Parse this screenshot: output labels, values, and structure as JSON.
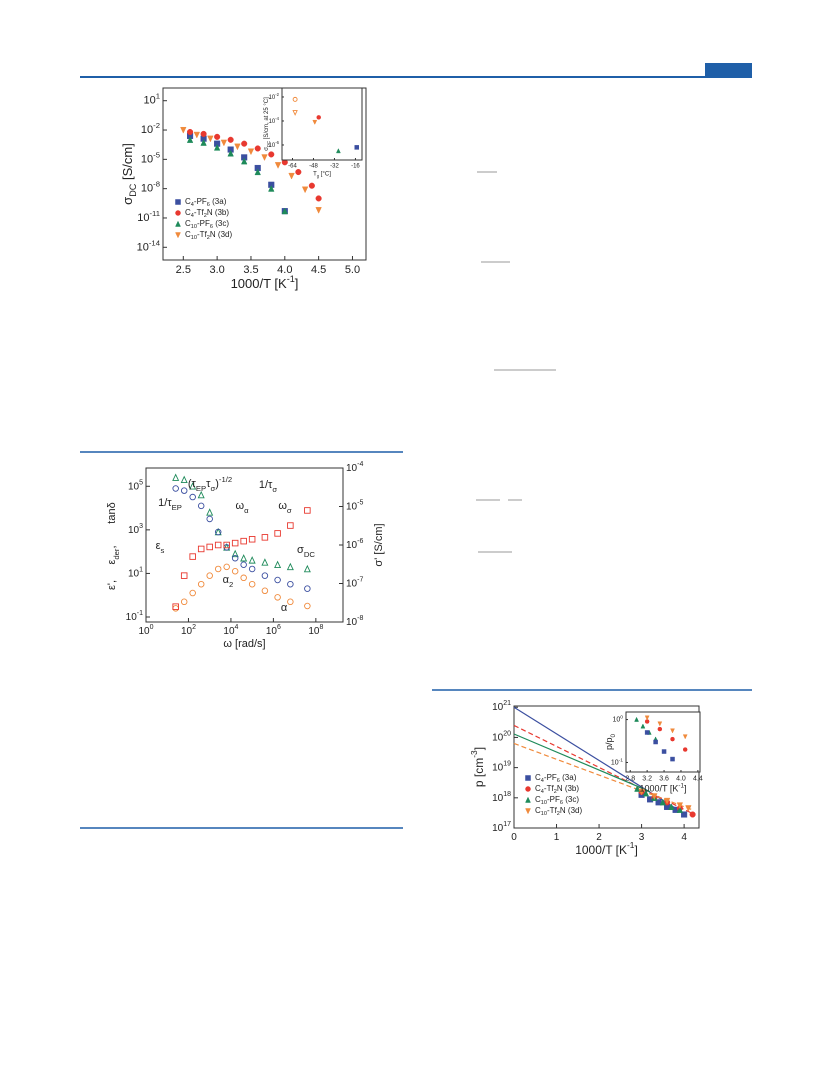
{
  "chart_data": [
    {
      "type": "scatter",
      "ylog": true,
      "xlabel": "1000/T [K^{-1}]",
      "ylabel": "σ_{DC} [S/cm]",
      "xlim": [
        2.2,
        5.2
      ],
      "xticks": [
        2.5,
        {
          "value": 3,
          "label": "3.0"
        },
        3.5,
        {
          "value": 4,
          "label": "4.0"
        },
        4.5,
        {
          "value": 5,
          "label": "5.0"
        }
      ],
      "ylim": [
        5e-16,
        200
      ],
      "yticks": [
        {
          "value": 10,
          "label": "10^{1}"
        },
        {
          "value": 0.01,
          "label": "10^{-2}"
        },
        {
          "value": 1e-05,
          "label": "10^{-5}"
        },
        {
          "value": 1e-08,
          "label": "10^{-8}"
        },
        {
          "value": 1e-11,
          "label": "10^{-11}"
        },
        {
          "value": 1e-14,
          "label": "10^{-14}"
        }
      ],
      "series": [
        {
          "name": "C_{4}-PF_{6} (3a)",
          "color": "#3b4fa0",
          "marker": "square",
          "x": [
            2.6,
            2.8,
            3.0,
            3.2,
            3.4,
            3.6,
            3.8,
            4.0
          ],
          "values": [
            0.0025,
            0.0013,
            0.0004,
            0.0001,
            1.6e-05,
            1.3e-06,
            2.5e-08,
            5e-11
          ]
        },
        {
          "name": "C_{4}-Tf_{2}N (3b)",
          "color": "#e8382f",
          "marker": "circle",
          "x": [
            2.6,
            2.8,
            3.0,
            3.2,
            3.4,
            3.6,
            3.8,
            4.0,
            4.2,
            4.4,
            4.5
          ],
          "values": [
            0.0063,
            0.004,
            0.002,
            0.001,
            0.0004,
            0.00013,
            3.2e-05,
            5e-06,
            5e-07,
            2e-08,
            1e-09
          ]
        },
        {
          "name": "C_{10}-PF_{6} (3c)",
          "color": "#1e8a5a",
          "marker": "triangle",
          "x": [
            2.6,
            2.8,
            3.0,
            3.2,
            3.4,
            3.6,
            3.8,
            4.0
          ],
          "values": [
            0.001,
            0.0005,
            0.00016,
            4e-05,
            6.3e-06,
            5e-07,
            1e-08,
            5e-11
          ]
        },
        {
          "name": "C_{10}-Tf_{2}N (3d)",
          "color": "#f08a3c",
          "marker": "down-triangle",
          "x": [
            2.5,
            2.7,
            2.9,
            3.1,
            3.3,
            3.5,
            3.7,
            3.9,
            4.1,
            4.3,
            4.5
          ],
          "values": [
            0.01,
            0.0032,
            0.0013,
            0.0005,
            0.0002,
            6.3e-05,
            1.6e-05,
            2.5e-06,
            2e-07,
            8e-09,
            6.3e-11
          ]
        }
      ]
    },
    {
      "type": "scatter",
      "ylog": true,
      "xlabel": "T_{g} [°C]",
      "ylabel": "σ_{DC} [S/cm, at 25 °C]",
      "xlim": [
        -72,
        -11
      ],
      "xticks": [
        -64,
        -48,
        -32,
        -16
      ],
      "ylim": [
        5.6e-08,
        0.056
      ],
      "yticks": [
        {
          "value": 0.01,
          "label": "10^{-2}"
        },
        {
          "value": 0.0001,
          "label": "10^{-4}"
        },
        {
          "value": 1e-06,
          "label": "10^{-6}"
        }
      ],
      "series": [
        {
          "color": "#f08a3c",
          "marker": "open-circle",
          "x": [
            -62
          ],
          "values": [
            0.0063
          ]
        },
        {
          "color": "#f08a3c",
          "marker": "open-down-triangle",
          "x": [
            -62
          ],
          "values": [
            0.0005
          ]
        },
        {
          "color": "#e8382f",
          "marker": "circle",
          "x": [
            -44
          ],
          "values": [
            0.0002
          ]
        },
        {
          "color": "#f08a3c",
          "marker": "down-triangle",
          "x": [
            -47
          ],
          "values": [
            7.9e-05
          ]
        },
        {
          "color": "#1e8a5a",
          "marker": "triangle",
          "x": [
            -29
          ],
          "values": [
            3.2e-07
          ]
        },
        {
          "color": "#3b4fa0",
          "marker": "square",
          "x": [
            -15
          ],
          "values": [
            6.3e-07
          ]
        }
      ]
    },
    {
      "type": "scatter",
      "xlog": true,
      "ylog": true,
      "y2log": true,
      "xlabel": "ω [rad/s]",
      "ylabel": [
        "ε',",
        "ε_{der},",
        "tanδ"
      ],
      "y2label": "σ' [S/cm]",
      "xlim": [
        1,
        1900000000.0
      ],
      "xticks": [
        {
          "value": 1,
          "label": "10^{0}"
        },
        {
          "value": 100,
          "label": "10^{2}"
        },
        {
          "value": 10000,
          "label": "10^{4}"
        },
        {
          "value": 1000000,
          "label": "10^{6}"
        },
        {
          "value": 100000000,
          "label": "10^{8}"
        }
      ],
      "ylim": [
        0.059,
        690000
      ],
      "yticks": [
        {
          "value": 0.1,
          "label": "10^{-1}"
        },
        {
          "value": 10,
          "label": "10^{1}"
        },
        {
          "value": 1000,
          "label": "10^{3}"
        },
        {
          "value": 100000,
          "label": "10^{5}"
        }
      ],
      "y2lim": [
        1e-08,
        0.0001
      ],
      "y2ticks": [
        {
          "value": 1e-08,
          "label": "10^{-8}"
        },
        {
          "value": 1e-07,
          "label": "10^{-7}"
        },
        {
          "value": 1e-06,
          "label": "10^{-6}"
        },
        {
          "value": 1e-05,
          "label": "10^{-5}"
        },
        {
          "value": 0.0001,
          "label": "10^{-4}"
        }
      ],
      "series": [
        {
          "color": "#1e8a5a",
          "marker": "open-triangle",
          "x": [
            25,
            63,
            158,
            398,
            1000,
            2512,
            6310,
            15850,
            39810,
            100000,
            398000,
            1580000,
            6300000,
            39800000
          ],
          "values": [
            250000,
            200000,
            100000,
            39800,
            6310,
            794,
            158,
            79,
            50,
            40,
            32,
            25,
            20,
            16
          ]
        },
        {
          "color": "#3b4fa0",
          "marker": "open-circle",
          "x": [
            25,
            63,
            158,
            398,
            1000,
            2512,
            6310,
            15850,
            39810,
            100000,
            398000,
            1580000,
            6300000,
            39800000
          ],
          "values": [
            79000,
            63000,
            32000,
            12600,
            3162,
            794,
            158,
            50,
            25,
            16,
            7.9,
            5,
            3.2,
            2
          ]
        },
        {
          "color": "#f08a3c",
          "marker": "open-circle",
          "x": [
            25,
            63,
            158,
            398,
            1000,
            2512,
            6310,
            15850,
            39810,
            100000,
            398000,
            1580000,
            6300000,
            39800000
          ],
          "values": [
            0.25,
            0.5,
            1.26,
            3.2,
            7.9,
            16,
            20,
            12.6,
            6.3,
            3.2,
            1.6,
            0.8,
            0.5,
            0.32
          ]
        },
        {
          "color": "#e8382f",
          "marker": "open-square",
          "axis": "y2",
          "x": [
            25,
            63,
            158,
            398,
            1000,
            2512,
            6310,
            15850,
            39810,
            100000,
            398000,
            1580000,
            6300000,
            39800000
          ],
          "values": [
            2.5e-08,
            1.6e-07,
            5e-07,
            7.9e-07,
            8.9e-07,
            1e-06,
            1e-06,
            1.12e-06,
            1.26e-06,
            1.41e-06,
            1.58e-06,
            2e-06,
            3.2e-06,
            7.9e-06
          ]
        }
      ],
      "annotations": [
        {
          "text": "1/τ_{EP}",
          "color": "#1e8a5a"
        },
        {
          "text": "(τ_{EP}τ_{σ})^{-1/2}",
          "color": "#f08a3c"
        },
        {
          "text": "1/τ_{σ}",
          "color": "#8a3ca0"
        },
        {
          "text": "ω_{α}",
          "color": "#e8382f"
        },
        {
          "text": "ω_{σ}",
          "color": "#3b4fa0"
        },
        {
          "text": "ε_{s}",
          "color": "#1e8a5a"
        },
        {
          "text": "σ_{DC}",
          "color": "#e8382f"
        },
        {
          "text": "α_{2}",
          "color": "#3b4fa0"
        },
        {
          "text": "α",
          "color": "#3b4fa0"
        }
      ]
    },
    {
      "type": "scatter",
      "ylog": true,
      "xlabel": "1000/T [K^{-1}]",
      "ylabel": "p [cm^{-3}]",
      "xlim": [
        0,
        4.35
      ],
      "xticks": [
        0,
        1,
        2,
        3,
        4
      ],
      "ylim": [
        1e+17,
        1.1e+21
      ],
      "yticks": [
        {
          "value": 1e+17,
          "label": "10^{17}"
        },
        {
          "value": 1e+18,
          "label": "10^{18}"
        },
        {
          "value": 1e+19,
          "label": "10^{19}"
        },
        {
          "value": 1e+20,
          "label": "10^{20}"
        },
        {
          "value": 1e+21,
          "label": "10^{21}"
        }
      ],
      "series": [
        {
          "color": "#3b4fa0",
          "style": "solid",
          "x": [
            0,
            4.0
          ],
          "values": [
            1e+21,
            3e+17
          ]
        },
        {
          "color": "#e8382f",
          "style": "dashed",
          "x": [
            0,
            4.2
          ],
          "values": [
            2.5e+20,
            3e+17
          ]
        },
        {
          "color": "#1e8a5a",
          "style": "solid",
          "x": [
            0,
            3.2
          ],
          "values": [
            1.3e+20,
            1.6e+18
          ]
        },
        {
          "color": "#f08a3c",
          "style": "dashed",
          "x": [
            0,
            4.2
          ],
          "values": [
            6.3e+19,
            4e+17
          ]
        },
        {
          "name": "C_{4}-PF_{6} (3a)",
          "color": "#3b4fa0",
          "marker": "square",
          "x": [
            3.0,
            3.2,
            3.4,
            3.6,
            3.8,
            4.0
          ],
          "values": [
            1.26e+18,
            8.9e+17,
            7.1e+17,
            5e+17,
            4e+17,
            2.8e+17
          ]
        },
        {
          "name": "C_{4}-Tf_{2}N (3b)",
          "color": "#e8382f",
          "marker": "circle",
          "x": [
            3.0,
            3.3,
            3.6,
            3.9,
            4.2
          ],
          "values": [
            1.58e+18,
            1e+18,
            7.1e+17,
            4.5e+17,
            2.8e+17
          ]
        },
        {
          "name": "C_{10}-PF_{6} (3c)",
          "color": "#1e8a5a",
          "marker": "triangle",
          "x": [
            2.9,
            3.1,
            3.3,
            3.5,
            3.7,
            3.9
          ],
          "values": [
            2e+18,
            1.41e+18,
            1e+18,
            7.1e+17,
            5e+17,
            4e+17
          ]
        },
        {
          "name": "C_{10}-Tf_{2}N (3d)",
          "color": "#f08a3c",
          "marker": "down-triangle",
          "x": [
            3.0,
            3.3,
            3.6,
            3.9,
            4.1
          ],
          "values": [
            1.58e+18,
            1.12e+18,
            7.9e+17,
            5.6e+17,
            4.5e+17
          ]
        }
      ]
    },
    {
      "type": "scatter",
      "ylog": true,
      "xlabel": "1000/T [K^{-1}]",
      "ylabel": "p/p_{0}",
      "xlim": [
        2.7,
        4.45
      ],
      "xticks": [
        2.8,
        3.2,
        3.6,
        {
          "value": 4,
          "label": "4.0"
        },
        4.4
      ],
      "ylim": [
        0.06,
        1.5
      ],
      "yticks": [
        {
          "value": 1,
          "label": "10^{0}"
        },
        {
          "value": 0.1,
          "label": "10^{-1}"
        }
      ],
      "series": [
        {
          "color": "#1e8a5a",
          "marker": "triangle",
          "x": [
            2.95,
            3.1,
            3.25,
            3.4
          ],
          "values": [
            1,
            0.7,
            0.5,
            0.35
          ]
        },
        {
          "color": "#3b4fa0",
          "marker": "square",
          "x": [
            3.2,
            3.4,
            3.6,
            3.8
          ],
          "values": [
            0.5,
            0.3,
            0.18,
            0.12
          ]
        },
        {
          "color": "#e8382f",
          "marker": "circle",
          "x": [
            3.2,
            3.5,
            3.8,
            4.1
          ],
          "values": [
            0.9,
            0.6,
            0.35,
            0.2
          ]
        },
        {
          "color": "#f08a3c",
          "marker": "down-triangle",
          "x": [
            3.2,
            3.5,
            3.8,
            4.1
          ],
          "values": [
            1.1,
            0.8,
            0.55,
            0.4
          ]
        }
      ]
    }
  ]
}
